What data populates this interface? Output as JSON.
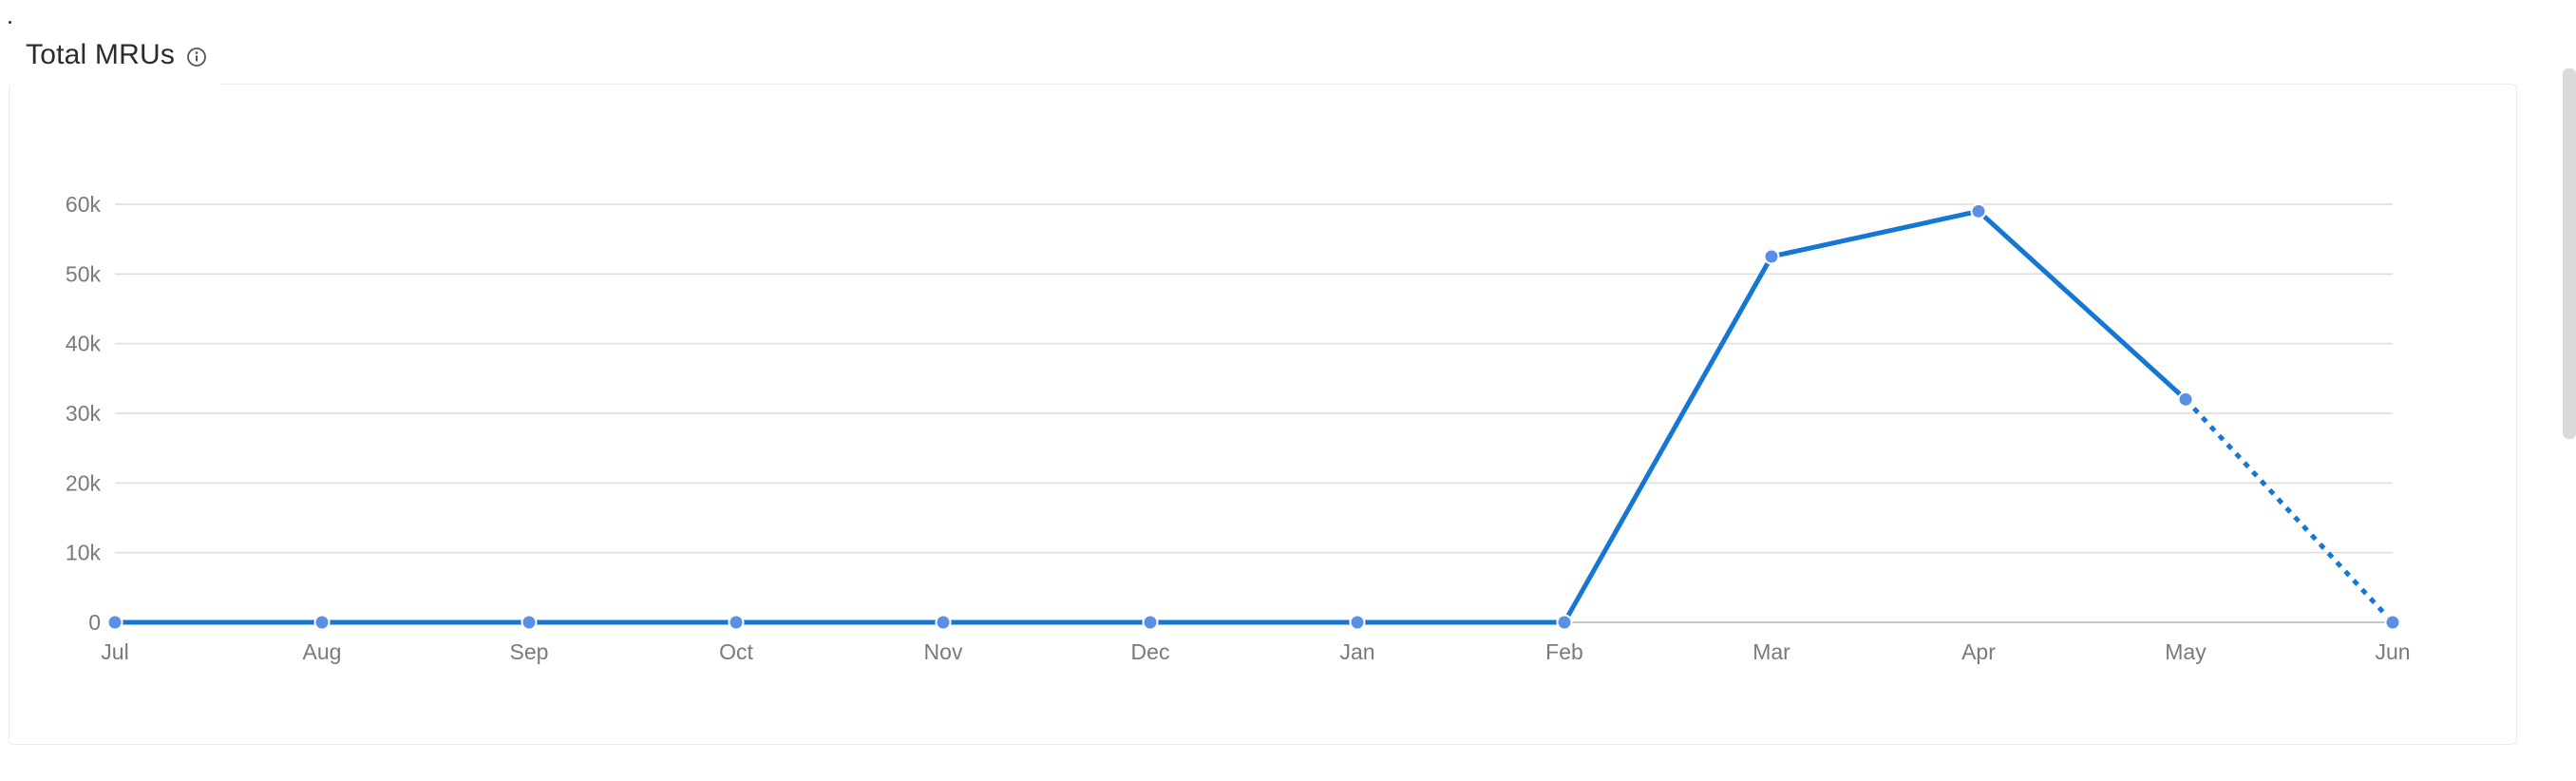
{
  "header": {
    "title": "Total MRUs",
    "info_icon": "info-circle-icon"
  },
  "colors": {
    "line": "#1477d4",
    "marker": "#5b8fe6",
    "grid": "#dcdcdc",
    "axis": "#c4c4c4"
  },
  "chart_data": {
    "type": "line",
    "title": "Total MRUs",
    "xlabel": "",
    "ylabel": "",
    "categories": [
      "Jul",
      "Aug",
      "Sep",
      "Oct",
      "Nov",
      "Dec",
      "Jan",
      "Feb",
      "Mar",
      "Apr",
      "May",
      "Jun"
    ],
    "series": [
      {
        "values": [
          0,
          0,
          0,
          0,
          0,
          0,
          0,
          0,
          52500,
          59000,
          32000,
          0
        ],
        "projected_from_index": 10
      }
    ],
    "ylim": [
      0,
      60000
    ],
    "yticks": [
      0,
      10000,
      20000,
      30000,
      40000,
      50000,
      60000
    ],
    "ytick_labels": [
      "0",
      "10k",
      "20k",
      "30k",
      "40k",
      "50k",
      "60k"
    ],
    "grid": true,
    "legend": "none"
  }
}
